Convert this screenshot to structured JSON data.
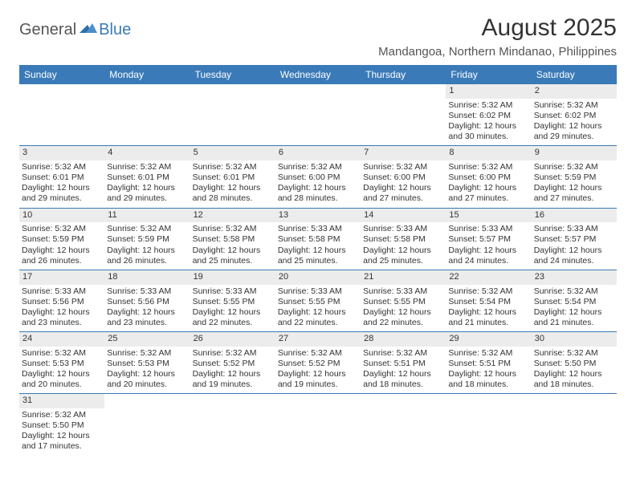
{
  "logo": {
    "part1": "General",
    "part2": "Blue"
  },
  "title": "August 2025",
  "subtitle": "Mandangoa, Northern Mindanao, Philippines",
  "accent_color": "#3a7ab8",
  "day_headers": [
    "Sunday",
    "Monday",
    "Tuesday",
    "Wednesday",
    "Thursday",
    "Friday",
    "Saturday"
  ],
  "weeks": [
    [
      null,
      null,
      null,
      null,
      null,
      {
        "d": "1",
        "sr": "Sunrise: 5:32 AM",
        "ss": "Sunset: 6:02 PM",
        "dl1": "Daylight: 12 hours",
        "dl2": "and 30 minutes."
      },
      {
        "d": "2",
        "sr": "Sunrise: 5:32 AM",
        "ss": "Sunset: 6:02 PM",
        "dl1": "Daylight: 12 hours",
        "dl2": "and 29 minutes."
      }
    ],
    [
      {
        "d": "3",
        "sr": "Sunrise: 5:32 AM",
        "ss": "Sunset: 6:01 PM",
        "dl1": "Daylight: 12 hours",
        "dl2": "and 29 minutes."
      },
      {
        "d": "4",
        "sr": "Sunrise: 5:32 AM",
        "ss": "Sunset: 6:01 PM",
        "dl1": "Daylight: 12 hours",
        "dl2": "and 29 minutes."
      },
      {
        "d": "5",
        "sr": "Sunrise: 5:32 AM",
        "ss": "Sunset: 6:01 PM",
        "dl1": "Daylight: 12 hours",
        "dl2": "and 28 minutes."
      },
      {
        "d": "6",
        "sr": "Sunrise: 5:32 AM",
        "ss": "Sunset: 6:00 PM",
        "dl1": "Daylight: 12 hours",
        "dl2": "and 28 minutes."
      },
      {
        "d": "7",
        "sr": "Sunrise: 5:32 AM",
        "ss": "Sunset: 6:00 PM",
        "dl1": "Daylight: 12 hours",
        "dl2": "and 27 minutes."
      },
      {
        "d": "8",
        "sr": "Sunrise: 5:32 AM",
        "ss": "Sunset: 6:00 PM",
        "dl1": "Daylight: 12 hours",
        "dl2": "and 27 minutes."
      },
      {
        "d": "9",
        "sr": "Sunrise: 5:32 AM",
        "ss": "Sunset: 5:59 PM",
        "dl1": "Daylight: 12 hours",
        "dl2": "and 27 minutes."
      }
    ],
    [
      {
        "d": "10",
        "sr": "Sunrise: 5:32 AM",
        "ss": "Sunset: 5:59 PM",
        "dl1": "Daylight: 12 hours",
        "dl2": "and 26 minutes."
      },
      {
        "d": "11",
        "sr": "Sunrise: 5:32 AM",
        "ss": "Sunset: 5:59 PM",
        "dl1": "Daylight: 12 hours",
        "dl2": "and 26 minutes."
      },
      {
        "d": "12",
        "sr": "Sunrise: 5:32 AM",
        "ss": "Sunset: 5:58 PM",
        "dl1": "Daylight: 12 hours",
        "dl2": "and 25 minutes."
      },
      {
        "d": "13",
        "sr": "Sunrise: 5:33 AM",
        "ss": "Sunset: 5:58 PM",
        "dl1": "Daylight: 12 hours",
        "dl2": "and 25 minutes."
      },
      {
        "d": "14",
        "sr": "Sunrise: 5:33 AM",
        "ss": "Sunset: 5:58 PM",
        "dl1": "Daylight: 12 hours",
        "dl2": "and 25 minutes."
      },
      {
        "d": "15",
        "sr": "Sunrise: 5:33 AM",
        "ss": "Sunset: 5:57 PM",
        "dl1": "Daylight: 12 hours",
        "dl2": "and 24 minutes."
      },
      {
        "d": "16",
        "sr": "Sunrise: 5:33 AM",
        "ss": "Sunset: 5:57 PM",
        "dl1": "Daylight: 12 hours",
        "dl2": "and 24 minutes."
      }
    ],
    [
      {
        "d": "17",
        "sr": "Sunrise: 5:33 AM",
        "ss": "Sunset: 5:56 PM",
        "dl1": "Daylight: 12 hours",
        "dl2": "and 23 minutes."
      },
      {
        "d": "18",
        "sr": "Sunrise: 5:33 AM",
        "ss": "Sunset: 5:56 PM",
        "dl1": "Daylight: 12 hours",
        "dl2": "and 23 minutes."
      },
      {
        "d": "19",
        "sr": "Sunrise: 5:33 AM",
        "ss": "Sunset: 5:55 PM",
        "dl1": "Daylight: 12 hours",
        "dl2": "and 22 minutes."
      },
      {
        "d": "20",
        "sr": "Sunrise: 5:33 AM",
        "ss": "Sunset: 5:55 PM",
        "dl1": "Daylight: 12 hours",
        "dl2": "and 22 minutes."
      },
      {
        "d": "21",
        "sr": "Sunrise: 5:33 AM",
        "ss": "Sunset: 5:55 PM",
        "dl1": "Daylight: 12 hours",
        "dl2": "and 22 minutes."
      },
      {
        "d": "22",
        "sr": "Sunrise: 5:32 AM",
        "ss": "Sunset: 5:54 PM",
        "dl1": "Daylight: 12 hours",
        "dl2": "and 21 minutes."
      },
      {
        "d": "23",
        "sr": "Sunrise: 5:32 AM",
        "ss": "Sunset: 5:54 PM",
        "dl1": "Daylight: 12 hours",
        "dl2": "and 21 minutes."
      }
    ],
    [
      {
        "d": "24",
        "sr": "Sunrise: 5:32 AM",
        "ss": "Sunset: 5:53 PM",
        "dl1": "Daylight: 12 hours",
        "dl2": "and 20 minutes."
      },
      {
        "d": "25",
        "sr": "Sunrise: 5:32 AM",
        "ss": "Sunset: 5:53 PM",
        "dl1": "Daylight: 12 hours",
        "dl2": "and 20 minutes."
      },
      {
        "d": "26",
        "sr": "Sunrise: 5:32 AM",
        "ss": "Sunset: 5:52 PM",
        "dl1": "Daylight: 12 hours",
        "dl2": "and 19 minutes."
      },
      {
        "d": "27",
        "sr": "Sunrise: 5:32 AM",
        "ss": "Sunset: 5:52 PM",
        "dl1": "Daylight: 12 hours",
        "dl2": "and 19 minutes."
      },
      {
        "d": "28",
        "sr": "Sunrise: 5:32 AM",
        "ss": "Sunset: 5:51 PM",
        "dl1": "Daylight: 12 hours",
        "dl2": "and 18 minutes."
      },
      {
        "d": "29",
        "sr": "Sunrise: 5:32 AM",
        "ss": "Sunset: 5:51 PM",
        "dl1": "Daylight: 12 hours",
        "dl2": "and 18 minutes."
      },
      {
        "d": "30",
        "sr": "Sunrise: 5:32 AM",
        "ss": "Sunset: 5:50 PM",
        "dl1": "Daylight: 12 hours",
        "dl2": "and 18 minutes."
      }
    ],
    [
      {
        "d": "31",
        "sr": "Sunrise: 5:32 AM",
        "ss": "Sunset: 5:50 PM",
        "dl1": "Daylight: 12 hours",
        "dl2": "and 17 minutes."
      },
      null,
      null,
      null,
      null,
      null,
      null
    ]
  ]
}
